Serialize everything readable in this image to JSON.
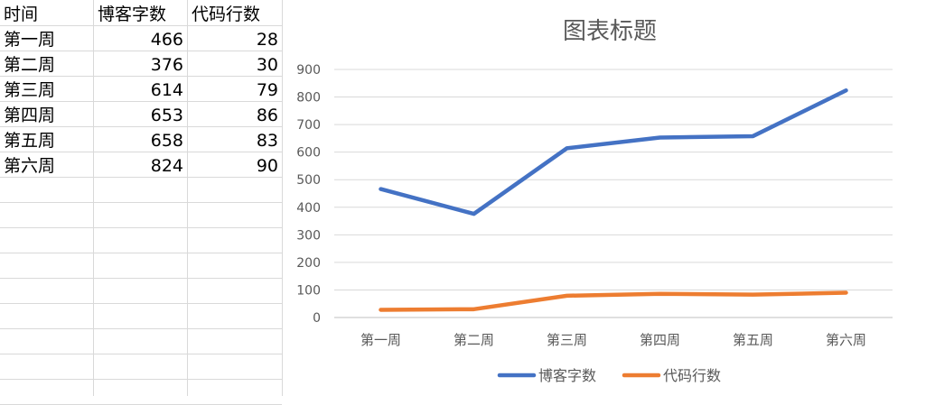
{
  "sheet": {
    "headers": [
      "时间",
      "博客字数",
      "代码行数"
    ],
    "rows": [
      [
        "第一周",
        "466",
        "28"
      ],
      [
        "第二周",
        "376",
        "30"
      ],
      [
        "第三周",
        "614",
        "79"
      ],
      [
        "第四周",
        "653",
        "86"
      ],
      [
        "第五周",
        "658",
        "83"
      ],
      [
        "第六周",
        "824",
        "90"
      ]
    ]
  },
  "chart_data": {
    "type": "line",
    "title": "图表标题",
    "categories": [
      "第一周",
      "第二周",
      "第三周",
      "第四周",
      "第五周",
      "第六周"
    ],
    "series": [
      {
        "name": "博客字数",
        "values": [
          466,
          376,
          614,
          653,
          658,
          824
        ],
        "color": "#4472c4"
      },
      {
        "name": "代码行数",
        "values": [
          28,
          30,
          79,
          86,
          83,
          90
        ],
        "color": "#ed7d31"
      }
    ],
    "yticks": [
      "0",
      "100",
      "200",
      "300",
      "400",
      "500",
      "600",
      "700",
      "800",
      "900"
    ],
    "ylim": [
      0,
      900
    ],
    "grid": true,
    "legend": "bottom"
  }
}
